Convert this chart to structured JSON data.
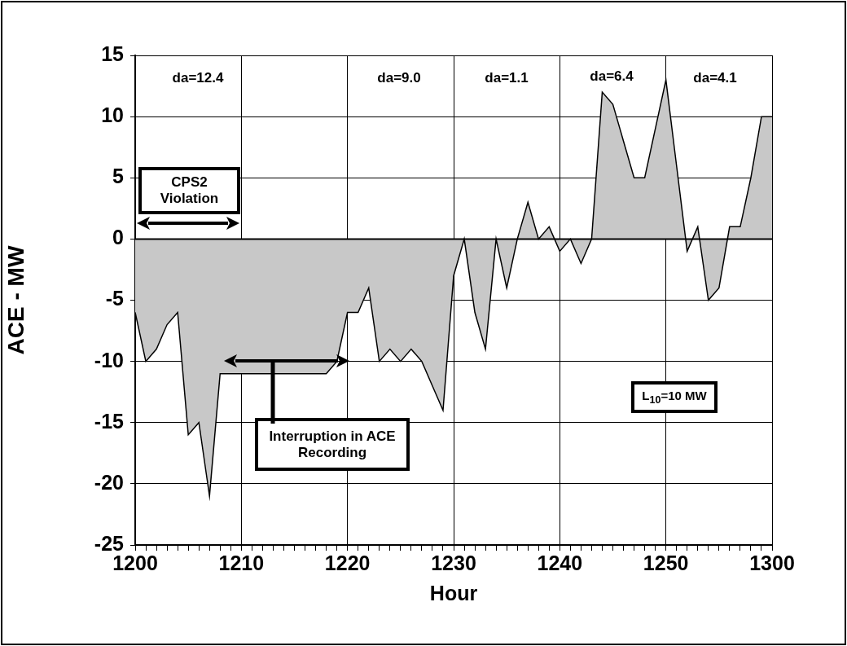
{
  "chart_data": {
    "type": "area",
    "xlabel": "Hour",
    "ylabel": "ACE - MW",
    "categories": [
      "1200",
      null,
      null,
      null,
      null,
      null,
      null,
      null,
      null,
      null,
      "1210",
      null,
      null,
      null,
      null,
      null,
      null,
      null,
      null,
      null,
      "1220",
      null,
      null,
      null,
      null,
      null,
      null,
      null,
      null,
      null,
      "1230",
      null,
      null,
      null,
      null,
      null,
      null,
      null,
      null,
      null,
      "1240",
      null,
      null,
      null,
      null,
      null,
      null,
      null,
      null,
      null,
      "1250",
      null,
      null,
      null,
      null,
      null,
      null,
      null,
      null,
      null,
      "1300"
    ],
    "series": [
      {
        "color": "#c8c8c8",
        "values": [
          -6,
          -10,
          -9,
          -7,
          -6,
          -16,
          -15,
          -21,
          -11,
          -11,
          -11,
          -11,
          -11,
          -11,
          -11,
          -11,
          -11,
          -11,
          -11,
          -10,
          -6,
          -6,
          -4,
          -10,
          -9,
          -10,
          -9,
          -10,
          -12,
          -14,
          -3,
          0,
          -6,
          -9,
          0,
          -4,
          0,
          3,
          0,
          1,
          -1,
          0,
          -2,
          0,
          12,
          11,
          8,
          5,
          5,
          9,
          13,
          6,
          -1,
          1,
          -5,
          -4,
          1,
          1,
          5,
          10,
          10
        ]
      }
    ],
    "ylim": [
      -25,
      15
    ],
    "yticks": [
      -25,
      -20,
      -15,
      -10,
      -5,
      0,
      5,
      10,
      15
    ],
    "grid": true,
    "legend": false,
    "marker": "none",
    "annotations": [
      "da=12.4",
      "da=9.0",
      "da=1.1",
      "da=6.4",
      "da=4.1",
      "CPS2 Violation",
      "Interruption in ACE Recording",
      "L$_{10}$=10 MW"
    ]
  }
}
